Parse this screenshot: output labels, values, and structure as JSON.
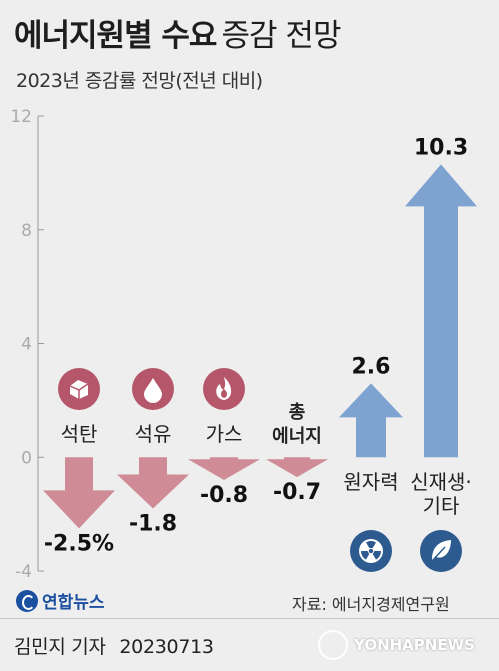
{
  "header": {
    "title_bold": "에너지원별 수요",
    "title_light": "증감 전망",
    "subtitle": "2023년 증감률 전망(전년 대비)"
  },
  "chart_data": {
    "type": "bar",
    "title": "에너지원별 수요 증감 전망",
    "subtitle": "2023년 증감률 전망(전년 대비)",
    "ylim": [
      -4,
      12
    ],
    "yticks": [
      -4,
      0,
      4,
      8,
      12
    ],
    "categories": [
      "석탄",
      "석유",
      "가스",
      "총 에너지",
      "원자력",
      "신재생·기타"
    ],
    "category_lines": [
      [
        "석탄"
      ],
      [
        "석유"
      ],
      [
        "가스"
      ],
      [
        "총",
        "에너지"
      ],
      [
        "원자력"
      ],
      [
        "신재생·",
        "기타"
      ]
    ],
    "values": [
      -2.5,
      -1.8,
      -0.8,
      -0.7,
      2.6,
      10.3
    ],
    "value_labels": [
      "-2.5%",
      "-1.8",
      "-0.8",
      "-0.7",
      "2.6",
      "10.3"
    ],
    "icons": [
      "coal-icon",
      "oil-drop-icon",
      "flame-icon",
      "",
      "radiation-icon",
      "leaf-icon"
    ],
    "colors": {
      "negative": "#cf8c97",
      "positive": "#7fa3d1",
      "icon_red": "#b5566a",
      "icon_blue": "#2d5a8f",
      "axis": "#999999"
    },
    "grid": false,
    "legend": "none"
  },
  "footer": {
    "brand": "연합뉴스",
    "source": "자료: 에너지경제연구원",
    "reporter": "김민지 기자",
    "date": "20230713",
    "watermark": "YONHAPNEWS"
  }
}
